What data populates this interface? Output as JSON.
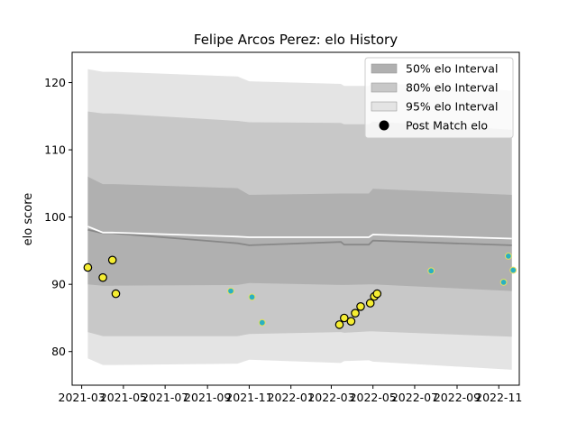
{
  "chart_data": {
    "type": "line",
    "title": "Felipe Arcos Perez: elo History",
    "xlabel": "",
    "ylabel": "elo score",
    "xlim": [
      "2021-02-15",
      "2022-12-01"
    ],
    "ylim": [
      75,
      124.5
    ],
    "x_ticks": [
      "2021-03",
      "2021-05",
      "2021-07",
      "2021-09",
      "2021-11",
      "2022-01",
      "2022-03",
      "2022-05",
      "2022-07",
      "2022-09",
      "2022-11"
    ],
    "y_ticks": [
      80,
      90,
      100,
      110,
      120
    ],
    "grid": false,
    "legend_position": "top-right",
    "legend": [
      {
        "label": "50% elo Interval",
        "kind": "patch",
        "color": "#b0b0b0"
      },
      {
        "label": "80% elo Interval",
        "kind": "patch",
        "color": "#c8c8c8"
      },
      {
        "label": "95% elo Interval",
        "kind": "patch",
        "color": "#e4e4e4"
      },
      {
        "label": "Post Match elo",
        "kind": "marker",
        "color": "#000000"
      }
    ],
    "interval_dates": [
      "2021-03-10",
      "2021-04-01",
      "2021-04-15",
      "2021-10-15",
      "2021-11-01",
      "2022-03-15",
      "2022-03-20",
      "2022-04-25",
      "2022-05-01",
      "2022-11-20"
    ],
    "bands": [
      {
        "name": "95% elo Interval",
        "color": "#e4e4e4",
        "lower": [
          79.0,
          78.0,
          78.0,
          78.2,
          78.8,
          78.3,
          78.6,
          78.7,
          78.5,
          77.3
        ],
        "upper": [
          122.0,
          121.6,
          121.6,
          120.9,
          120.2,
          119.8,
          119.5,
          119.5,
          120.0,
          118.8
        ]
      },
      {
        "name": "80% elo Interval",
        "color": "#c8c8c8",
        "lower": [
          82.9,
          82.3,
          82.3,
          82.3,
          82.6,
          82.9,
          82.8,
          83.0,
          83.0,
          82.2
        ],
        "upper": [
          115.7,
          115.4,
          115.4,
          114.3,
          114.1,
          114.0,
          113.8,
          113.8,
          114.2,
          113.0
        ]
      },
      {
        "name": "50% elo Interval",
        "color": "#b0b0b0",
        "lower": [
          90.0,
          89.8,
          89.8,
          89.9,
          90.2,
          89.9,
          89.9,
          90.0,
          90.0,
          89.0
        ],
        "upper": [
          106.0,
          104.9,
          104.9,
          104.3,
          103.3,
          103.5,
          103.5,
          103.5,
          104.2,
          103.3
        ]
      }
    ],
    "mean_line": {
      "color": "#ffffff",
      "values": [
        98.6,
        97.7,
        97.7,
        97.1,
        97.0,
        97.0,
        97.0,
        97.0,
        97.4,
        96.8
      ]
    },
    "median_line": {
      "color": "#888888",
      "values": [
        98.1,
        97.6,
        97.6,
        96.1,
        95.8,
        96.3,
        95.9,
        95.9,
        96.5,
        95.8
      ]
    },
    "points": [
      {
        "x": "2021-03-10",
        "y": 92.5,
        "style": "major"
      },
      {
        "x": "2021-04-01",
        "y": 91.0,
        "style": "major"
      },
      {
        "x": "2021-04-15",
        "y": 93.6,
        "style": "major"
      },
      {
        "x": "2021-04-20",
        "y": 88.6,
        "style": "major"
      },
      {
        "x": "2021-10-05",
        "y": 89.0,
        "style": "minor"
      },
      {
        "x": "2021-11-05",
        "y": 88.1,
        "style": "minor"
      },
      {
        "x": "2021-11-20",
        "y": 84.3,
        "style": "minor"
      },
      {
        "x": "2022-03-13",
        "y": 84.0,
        "style": "major"
      },
      {
        "x": "2022-03-20",
        "y": 85.0,
        "style": "major"
      },
      {
        "x": "2022-03-30",
        "y": 84.5,
        "style": "major"
      },
      {
        "x": "2022-04-05",
        "y": 85.7,
        "style": "major"
      },
      {
        "x": "2022-04-13",
        "y": 86.7,
        "style": "major"
      },
      {
        "x": "2022-04-27",
        "y": 87.2,
        "style": "major"
      },
      {
        "x": "2022-05-03",
        "y": 88.2,
        "style": "major"
      },
      {
        "x": "2022-05-07",
        "y": 88.6,
        "style": "major"
      },
      {
        "x": "2022-07-25",
        "y": 92.0,
        "style": "minor"
      },
      {
        "x": "2022-11-08",
        "y": 90.3,
        "style": "minor"
      },
      {
        "x": "2022-11-15",
        "y": 94.2,
        "style": "minor"
      },
      {
        "x": "2022-11-22",
        "y": 92.1,
        "style": "minor"
      }
    ],
    "marker_colors": {
      "major_fill": "#f5ed32",
      "major_edge": "#000000",
      "minor_fill": "#2ab0c2",
      "minor_edge": "#e6e060"
    }
  }
}
